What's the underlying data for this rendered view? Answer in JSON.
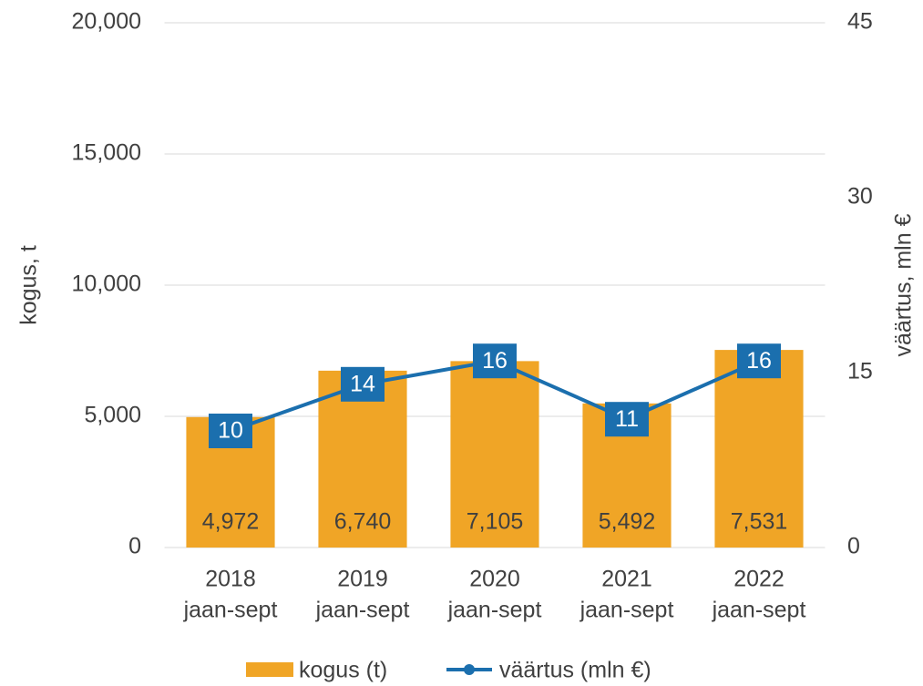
{
  "chart_data": {
    "type": "bar_line",
    "categories": [
      [
        "2018",
        "jaan-sept"
      ],
      [
        "2019",
        "jaan-sept"
      ],
      [
        "2020",
        "jaan-sept"
      ],
      [
        "2021",
        "jaan-sept"
      ],
      [
        "2022",
        "jaan-sept"
      ]
    ],
    "ylabel": "kogus, t",
    "y2label": "väärtus, mln €",
    "ylim": [
      0,
      20000
    ],
    "yticks": [
      0,
      {
        "value": 5000,
        "label": "5,000"
      },
      {
        "value": 10000,
        "label": "10,000"
      },
      {
        "value": 15000,
        "label": "15,000"
      },
      {
        "value": 20000,
        "label": "20,000"
      }
    ],
    "y2lim": [
      0,
      45
    ],
    "y2ticks": [
      0,
      15,
      30,
      45
    ],
    "grid": true,
    "legend": "bottom",
    "series": [
      {
        "name": "kogus (t)",
        "type": "bar",
        "color": "#f0a526",
        "values": [
          4972,
          6740,
          7105,
          5492,
          7531
        ],
        "value_labels": [
          "4,972",
          "6,740",
          "7,105",
          "5,492",
          "7,531"
        ]
      },
      {
        "name": "väärtus (mln €)",
        "type": "line",
        "axis": "y2",
        "color": "#1b6fae",
        "values": [
          10,
          14,
          16,
          11,
          16
        ]
      }
    ]
  }
}
